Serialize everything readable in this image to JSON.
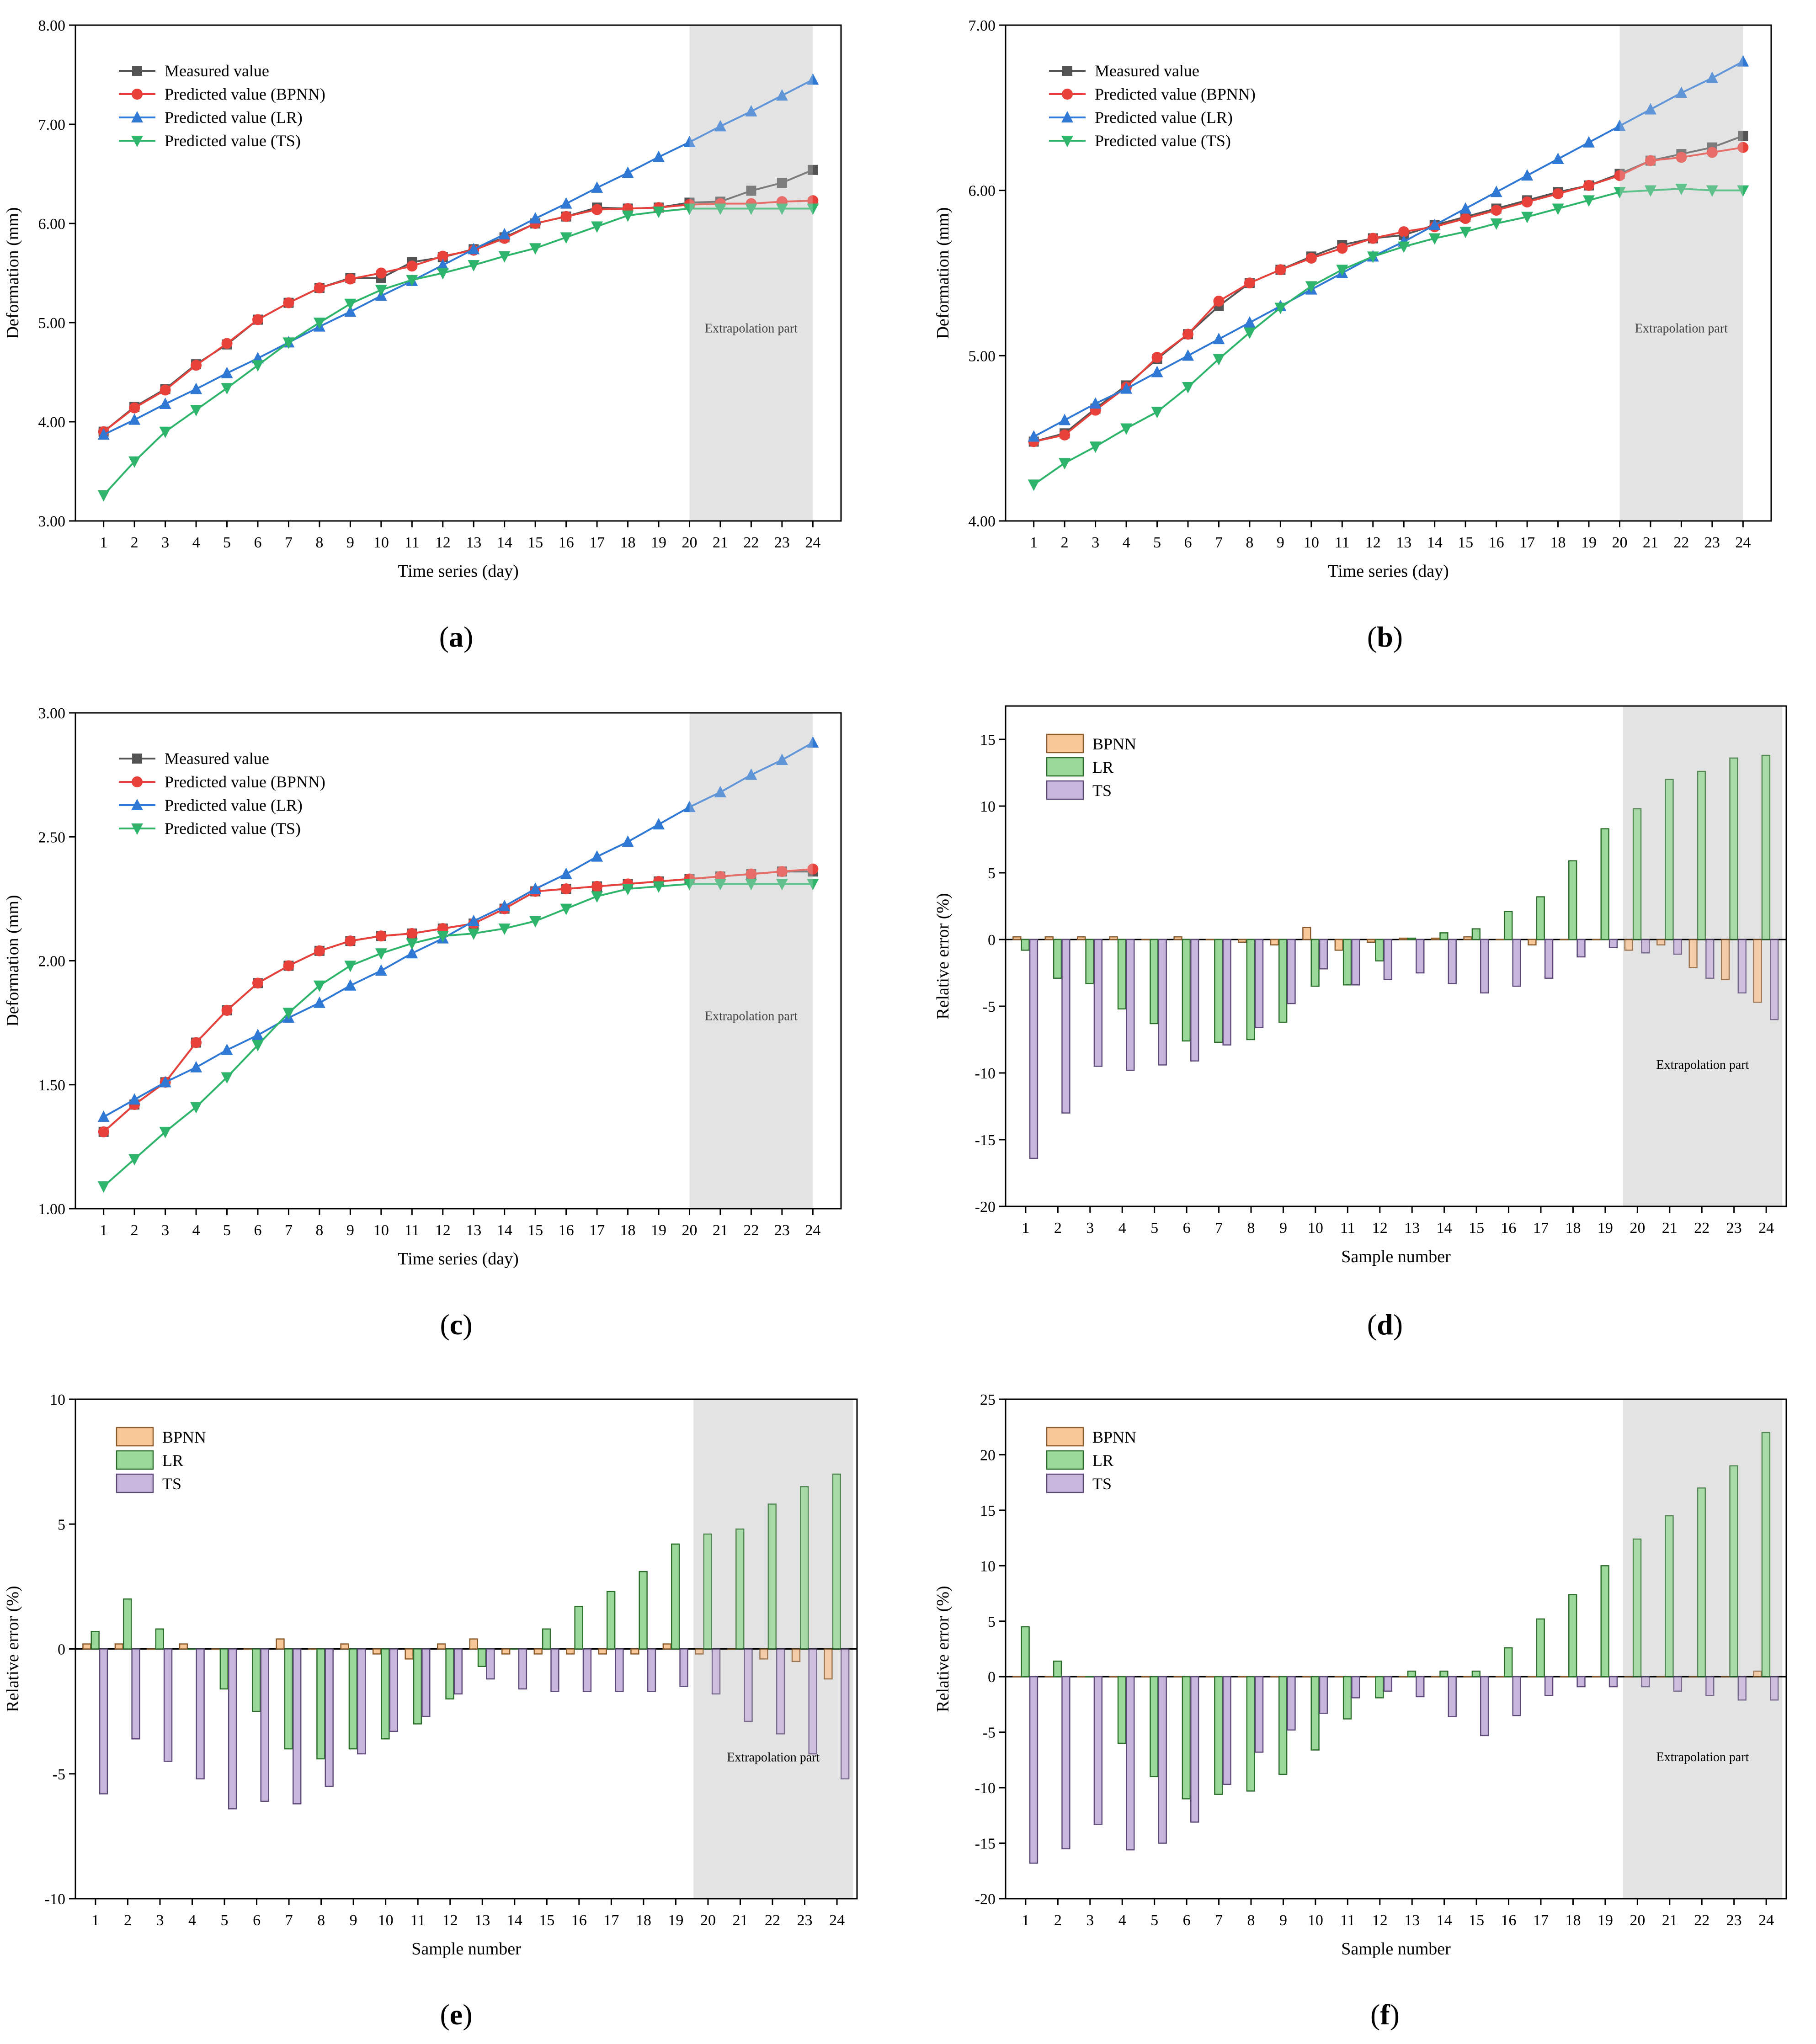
{
  "colors": {
    "measured": "#555555",
    "bpnn_line": "#e8403a",
    "lr_line": "#2f78d4",
    "ts_line": "#2fb56b",
    "bpnn_bar": "#f8c79a",
    "lr_bar": "#9bd89b",
    "ts_bar": "#c9b6dd",
    "shade": "#e3e3e3"
  },
  "chart_data": [
    {
      "id": "a",
      "type": "line",
      "label_open": "(",
      "label_letter": "a",
      "label_close": ")",
      "xlabel": "Time series (day)",
      "ylabel": "Deformation (mm)",
      "ylim": [
        3,
        8
      ],
      "yticks": [
        "3.00",
        "4.00",
        "5.00",
        "6.00",
        "7.00",
        "8.00"
      ],
      "x": [
        1,
        2,
        3,
        4,
        5,
        6,
        7,
        8,
        9,
        10,
        11,
        12,
        13,
        14,
        15,
        16,
        17,
        18,
        19,
        20,
        21,
        22,
        23,
        24
      ],
      "shade_from": 20,
      "shade_to": 24,
      "annotation": "Extrapolation part",
      "series": [
        {
          "name": "Measured value",
          "key": "measured",
          "marker": "square",
          "values": [
            3.9,
            4.15,
            4.33,
            4.58,
            4.78,
            5.03,
            5.2,
            5.35,
            5.45,
            5.45,
            5.61,
            5.66,
            5.74,
            5.86,
            6.0,
            6.07,
            6.16,
            6.15,
            6.16,
            6.21,
            6.22,
            6.33,
            6.41,
            6.54
          ]
        },
        {
          "name": "Predicted value (BPNN)",
          "key": "bpnn",
          "marker": "circle",
          "values": [
            3.9,
            4.14,
            4.32,
            4.57,
            4.79,
            5.03,
            5.2,
            5.35,
            5.44,
            5.5,
            5.57,
            5.67,
            5.73,
            5.85,
            6.0,
            6.07,
            6.14,
            6.15,
            6.16,
            6.19,
            6.2,
            6.2,
            6.22,
            6.23
          ]
        },
        {
          "name": "Predicted value (LR)",
          "key": "lr",
          "marker": "triangle",
          "values": [
            3.87,
            4.02,
            4.18,
            4.33,
            4.49,
            4.64,
            4.8,
            4.96,
            5.11,
            5.27,
            5.42,
            5.58,
            5.74,
            5.89,
            6.05,
            6.2,
            6.36,
            6.51,
            6.67,
            6.82,
            6.98,
            7.13,
            7.29,
            7.45
          ]
        },
        {
          "name": "Predicted value (TS)",
          "key": "ts",
          "marker": "triangle-down",
          "values": [
            3.26,
            3.6,
            3.9,
            4.12,
            4.34,
            4.57,
            4.8,
            5.0,
            5.19,
            5.33,
            5.43,
            5.5,
            5.58,
            5.67,
            5.75,
            5.86,
            5.97,
            6.08,
            6.12,
            6.15,
            6.15,
            6.15,
            6.15,
            6.15
          ]
        }
      ]
    },
    {
      "id": "b",
      "type": "line",
      "label_open": "(",
      "label_letter": "b",
      "label_close": ")",
      "xlabel": "Time series (day)",
      "ylabel": "Deformation (mm)",
      "ylim": [
        4,
        7
      ],
      "yticks": [
        "4.00",
        "5.00",
        "6.00",
        "7.00"
      ],
      "x": [
        1,
        2,
        3,
        4,
        5,
        6,
        7,
        8,
        9,
        10,
        11,
        12,
        13,
        14,
        15,
        16,
        17,
        18,
        19,
        20,
        21,
        22,
        23,
        24
      ],
      "shade_from": 20,
      "shade_to": 24,
      "annotation": "Extrapolation part",
      "series": [
        {
          "name": "Measured value",
          "key": "measured",
          "marker": "square",
          "values": [
            4.48,
            4.53,
            4.68,
            4.82,
            4.98,
            5.13,
            5.3,
            5.44,
            5.52,
            5.6,
            5.67,
            5.71,
            5.73,
            5.79,
            5.84,
            5.89,
            5.94,
            5.99,
            6.03,
            6.1,
            6.18,
            6.22,
            6.26,
            6.33
          ]
        },
        {
          "name": "Predicted value (BPNN)",
          "key": "bpnn",
          "marker": "circle",
          "values": [
            4.48,
            4.52,
            4.67,
            4.81,
            4.99,
            5.13,
            5.33,
            5.44,
            5.52,
            5.59,
            5.65,
            5.71,
            5.75,
            5.78,
            5.83,
            5.88,
            5.93,
            5.98,
            6.03,
            6.09,
            6.18,
            6.2,
            6.23,
            6.26
          ]
        },
        {
          "name": "Predicted value (LR)",
          "key": "lr",
          "marker": "triangle",
          "values": [
            4.51,
            4.61,
            4.71,
            4.8,
            4.9,
            5.0,
            5.1,
            5.2,
            5.3,
            5.4,
            5.5,
            5.6,
            5.69,
            5.79,
            5.89,
            5.99,
            6.09,
            6.19,
            6.29,
            6.39,
            6.49,
            6.59,
            6.68,
            6.78
          ]
        },
        {
          "name": "Predicted value (TS)",
          "key": "ts",
          "marker": "triangle-down",
          "values": [
            4.22,
            4.35,
            4.45,
            4.56,
            4.66,
            4.81,
            4.98,
            5.14,
            5.29,
            5.42,
            5.52,
            5.6,
            5.66,
            5.71,
            5.75,
            5.8,
            5.84,
            5.89,
            5.94,
            5.99,
            6.0,
            6.01,
            6.0,
            6.0
          ]
        }
      ]
    },
    {
      "id": "c",
      "type": "line",
      "label_open": "(",
      "label_letter": "c",
      "label_close": ")",
      "xlabel": "Time series (day)",
      "ylabel": "Deformation (mm)",
      "ylim": [
        1,
        3
      ],
      "yticks": [
        "1.00",
        "1.50",
        "2.00",
        "2.50",
        "3.00"
      ],
      "x": [
        1,
        2,
        3,
        4,
        5,
        6,
        7,
        8,
        9,
        10,
        11,
        12,
        13,
        14,
        15,
        16,
        17,
        18,
        19,
        20,
        21,
        22,
        23,
        24
      ],
      "shade_from": 20,
      "shade_to": 24,
      "annotation": "Extrapolation part",
      "series": [
        {
          "name": "Measured value",
          "key": "measured",
          "marker": "square",
          "values": [
            1.31,
            1.42,
            1.51,
            1.67,
            1.8,
            1.91,
            1.98,
            2.04,
            2.08,
            2.1,
            2.11,
            2.13,
            2.15,
            2.21,
            2.28,
            2.29,
            2.3,
            2.31,
            2.32,
            2.33,
            2.34,
            2.35,
            2.36,
            2.36
          ]
        },
        {
          "name": "Predicted value (BPNN)",
          "key": "bpnn",
          "marker": "circle",
          "values": [
            1.31,
            1.42,
            1.51,
            1.67,
            1.8,
            1.91,
            1.98,
            2.04,
            2.08,
            2.1,
            2.11,
            2.13,
            2.15,
            2.21,
            2.28,
            2.29,
            2.3,
            2.31,
            2.32,
            2.33,
            2.34,
            2.35,
            2.36,
            2.37
          ]
        },
        {
          "name": "Predicted value (LR)",
          "key": "lr",
          "marker": "triangle",
          "values": [
            1.37,
            1.44,
            1.51,
            1.57,
            1.64,
            1.7,
            1.77,
            1.83,
            1.9,
            1.96,
            2.03,
            2.09,
            2.16,
            2.22,
            2.29,
            2.35,
            2.42,
            2.48,
            2.55,
            2.62,
            2.68,
            2.75,
            2.81,
            2.88
          ]
        },
        {
          "name": "Predicted value (TS)",
          "key": "ts",
          "marker": "triangle-down",
          "values": [
            1.09,
            1.2,
            1.31,
            1.41,
            1.53,
            1.66,
            1.79,
            1.9,
            1.98,
            2.03,
            2.07,
            2.1,
            2.11,
            2.13,
            2.16,
            2.21,
            2.26,
            2.29,
            2.3,
            2.31,
            2.31,
            2.31,
            2.31,
            2.31
          ]
        }
      ]
    },
    {
      "id": "d",
      "type": "bar",
      "label_open": "(",
      "label_letter": "d",
      "label_close": ")",
      "xlabel": "Sample number",
      "ylabel": "Relative error (%)",
      "ylim": [
        -20,
        17.5
      ],
      "yticks": [
        "-20",
        "-15",
        "-10",
        "-5",
        "0",
        "5",
        "10",
        "15"
      ],
      "ytick_values": [
        -20,
        -15,
        -10,
        -5,
        0,
        5,
        10,
        15
      ],
      "categories": [
        1,
        2,
        3,
        4,
        5,
        6,
        7,
        8,
        9,
        10,
        11,
        12,
        13,
        14,
        15,
        16,
        17,
        18,
        19,
        20,
        21,
        22,
        23,
        24
      ],
      "shade_from": 20,
      "shade_to": 24,
      "annotation": "Extrapolation part",
      "series": [
        {
          "name": "BPNN",
          "key": "bpnn",
          "values": [
            0.2,
            0.2,
            0.2,
            0.2,
            0.0,
            0.2,
            0.0,
            -0.2,
            -0.4,
            0.9,
            -0.8,
            -0.2,
            0.1,
            0.1,
            0.2,
            0.0,
            -0.4,
            0.0,
            0.0,
            -0.8,
            -0.4,
            -2.1,
            -3.0,
            -4.7
          ]
        },
        {
          "name": "LR",
          "key": "lr",
          "values": [
            -0.8,
            -2.9,
            -3.3,
            -5.2,
            -6.3,
            -7.6,
            -7.7,
            -7.5,
            -6.2,
            -3.5,
            -3.4,
            -1.6,
            0.1,
            0.5,
            0.8,
            2.1,
            3.2,
            5.9,
            8.3,
            9.8,
            12.0,
            12.6,
            13.6,
            13.8
          ]
        },
        {
          "name": "TS",
          "key": "ts",
          "values": [
            -16.4,
            -13.0,
            -9.5,
            -9.8,
            -9.4,
            -9.1,
            -7.9,
            -6.6,
            -4.8,
            -2.2,
            -3.4,
            -3.0,
            -2.5,
            -3.3,
            -4.0,
            -3.5,
            -2.9,
            -1.3,
            -0.6,
            -1.0,
            -1.1,
            -2.9,
            -4.0,
            -6.0
          ]
        }
      ]
    },
    {
      "id": "e",
      "type": "bar",
      "label_open": "(",
      "label_letter": "e",
      "label_close": ")",
      "xlabel": "Sample number",
      "ylabel": "Relative error (%)",
      "ylim": [
        -10,
        10
      ],
      "yticks": [
        "-10",
        "-5",
        "0",
        "5",
        "10"
      ],
      "ytick_values": [
        -10,
        -5,
        0,
        5,
        10
      ],
      "categories": [
        1,
        2,
        3,
        4,
        5,
        6,
        7,
        8,
        9,
        10,
        11,
        12,
        13,
        14,
        15,
        16,
        17,
        18,
        19,
        20,
        21,
        22,
        23,
        24
      ],
      "shade_from": 20,
      "shade_to": 24,
      "annotation": "Extrapolation part",
      "series": [
        {
          "name": "BPNN",
          "key": "bpnn",
          "values": [
            0.2,
            0.2,
            0.0,
            0.2,
            0.0,
            0.0,
            0.4,
            0.0,
            0.2,
            -0.2,
            -0.4,
            0.2,
            0.4,
            -0.2,
            -0.2,
            -0.2,
            -0.2,
            -0.2,
            0.2,
            -0.2,
            0.0,
            -0.4,
            -0.5,
            -1.2
          ]
        },
        {
          "name": "LR",
          "key": "lr",
          "values": [
            0.7,
            2.0,
            0.8,
            0.0,
            -1.6,
            -2.5,
            -4.0,
            -4.4,
            -4.0,
            -3.6,
            -3.0,
            -2.0,
            -0.7,
            0.0,
            0.8,
            1.7,
            2.3,
            3.1,
            4.2,
            4.6,
            4.8,
            5.8,
            6.5,
            7.0
          ]
        },
        {
          "name": "TS",
          "key": "ts",
          "values": [
            -5.8,
            -3.6,
            -4.5,
            -5.2,
            -6.4,
            -6.1,
            -6.2,
            -5.5,
            -4.2,
            -3.3,
            -2.7,
            -1.8,
            -1.2,
            -1.6,
            -1.7,
            -1.7,
            -1.7,
            -1.7,
            -1.5,
            -1.8,
            -2.9,
            -3.4,
            -4.2,
            -5.2
          ]
        }
      ]
    },
    {
      "id": "f",
      "type": "bar",
      "label_open": "(",
      "label_letter": "f",
      "label_close": ")",
      "xlabel": "Sample number",
      "ylabel": "Relative error (%)",
      "ylim": [
        -20,
        25
      ],
      "yticks": [
        "-20",
        "-15",
        "-10",
        "-5",
        "0",
        "5",
        "10",
        "15",
        "20",
        "25"
      ],
      "ytick_values": [
        -20,
        -15,
        -10,
        -5,
        0,
        5,
        10,
        15,
        20,
        25
      ],
      "categories": [
        1,
        2,
        3,
        4,
        5,
        6,
        7,
        8,
        9,
        10,
        11,
        12,
        13,
        14,
        15,
        16,
        17,
        18,
        19,
        20,
        21,
        22,
        23,
        24
      ],
      "shade_from": 20,
      "shade_to": 24,
      "annotation": "Extrapolation part",
      "series": [
        {
          "name": "BPNN",
          "key": "bpnn",
          "values": [
            0.0,
            0.0,
            0.0,
            0.0,
            0.0,
            0.0,
            0.0,
            0.0,
            0.0,
            0.0,
            0.0,
            0.0,
            0.0,
            0.0,
            0.0,
            0.0,
            0.0,
            0.0,
            0.0,
            0.0,
            0.0,
            0.0,
            0.0,
            0.5
          ]
        },
        {
          "name": "LR",
          "key": "lr",
          "values": [
            4.5,
            1.4,
            0.0,
            -6.0,
            -9.0,
            -11.0,
            -10.6,
            -10.3,
            -8.8,
            -6.6,
            -3.8,
            -1.9,
            0.5,
            0.5,
            0.5,
            2.6,
            5.2,
            7.4,
            10.0,
            12.4,
            14.5,
            17.0,
            19.0,
            22.0
          ]
        },
        {
          "name": "TS",
          "key": "ts",
          "values": [
            -16.8,
            -15.5,
            -13.3,
            -15.6,
            -15.0,
            -13.1,
            -9.7,
            -6.8,
            -4.8,
            -3.3,
            -1.9,
            -1.3,
            -1.8,
            -3.6,
            -5.3,
            -3.5,
            -1.7,
            -0.9,
            -0.9,
            -0.9,
            -1.3,
            -1.7,
            -2.1,
            -2.1
          ]
        }
      ]
    }
  ]
}
